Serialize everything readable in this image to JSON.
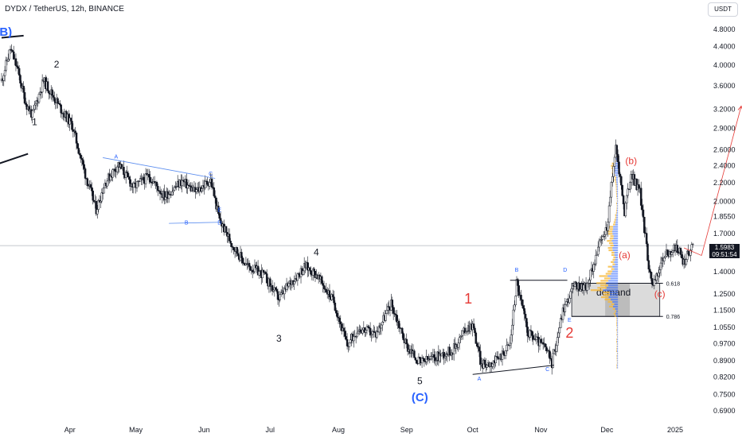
{
  "header": {
    "title": "DYDX / TetherUS, 12h, BINANCE",
    "currency_button": "USDT"
  },
  "price_tag": {
    "price": "1.5983",
    "countdown": "09:51:54"
  },
  "chart_data": {
    "type": "candlestick",
    "symbol": "DYDX / TetherUS",
    "interval": "12h",
    "exchange": "BINANCE",
    "y_scale": "log",
    "ylim": [
      0.66,
      5.1
    ],
    "y_ticks": [
      4.8,
      4.4,
      4.0,
      3.6,
      3.2,
      2.9,
      2.6,
      2.4,
      2.2,
      2.0,
      1.855,
      1.7,
      1.4,
      1.25,
      1.15,
      1.055,
      0.97,
      0.89,
      0.82,
      0.75,
      0.69
    ],
    "y_tick_labels": [
      "4.8000",
      "4.4000",
      "4.0000",
      "3.6000",
      "3.2000",
      "2.9000",
      "2.6000",
      "2.4000",
      "2.2000",
      "2.0000",
      "1.8550",
      "1.7000",
      "1.4000",
      "1.2500",
      "1.1500",
      "1.0550",
      "0.9700",
      "0.8900",
      "0.8200",
      "0.7500",
      "0.6900"
    ],
    "x_domain": [
      "2024-03-01",
      "2025-01-14"
    ],
    "x_ticks": [
      {
        "date": "2024-04-01",
        "label": "Apr"
      },
      {
        "date": "2024-05-01",
        "label": "May"
      },
      {
        "date": "2024-06-01",
        "label": "Jun"
      },
      {
        "date": "2024-07-01",
        "label": "Jul"
      },
      {
        "date": "2024-08-01",
        "label": "Aug"
      },
      {
        "date": "2024-09-01",
        "label": "Sep"
      },
      {
        "date": "2024-10-01",
        "label": "Oct"
      },
      {
        "date": "2024-11-01",
        "label": "Nov"
      },
      {
        "date": "2024-12-01",
        "label": "Dec"
      },
      {
        "date": "2025-01-01",
        "label": "2025"
      }
    ],
    "price_path": [
      [
        "2024-03-01",
        3.7
      ],
      [
        "2024-03-05",
        4.35
      ],
      [
        "2024-03-08",
        3.95
      ],
      [
        "2024-03-12",
        3.3
      ],
      [
        "2024-03-15",
        3.1
      ],
      [
        "2024-03-20",
        3.7
      ],
      [
        "2024-03-24",
        3.45
      ],
      [
        "2024-03-28",
        3.2
      ],
      [
        "2024-04-02",
        2.95
      ],
      [
        "2024-04-08",
        2.3
      ],
      [
        "2024-04-13",
        1.92
      ],
      [
        "2024-04-17",
        2.2
      ],
      [
        "2024-04-23",
        2.42
      ],
      [
        "2024-04-30",
        2.15
      ],
      [
        "2024-05-07",
        2.28
      ],
      [
        "2024-05-14",
        2.05
      ],
      [
        "2024-05-22",
        2.22
      ],
      [
        "2024-05-28",
        2.1
      ],
      [
        "2024-06-04",
        2.23
      ],
      [
        "2024-06-08",
        1.82
      ],
      [
        "2024-06-14",
        1.6
      ],
      [
        "2024-06-20",
        1.45
      ],
      [
        "2024-06-28",
        1.38
      ],
      [
        "2024-07-05",
        1.22
      ],
      [
        "2024-07-10",
        1.32
      ],
      [
        "2024-07-17",
        1.44
      ],
      [
        "2024-07-22",
        1.38
      ],
      [
        "2024-07-30",
        1.2
      ],
      [
        "2024-08-05",
        0.96
      ],
      [
        "2024-08-10",
        1.05
      ],
      [
        "2024-08-18",
        1.02
      ],
      [
        "2024-08-25",
        1.19
      ],
      [
        "2024-09-01",
        0.96
      ],
      [
        "2024-09-07",
        0.88
      ],
      [
        "2024-09-15",
        0.91
      ],
      [
        "2024-09-22",
        0.94
      ],
      [
        "2024-09-28",
        1.05
      ],
      [
        "2024-10-01",
        1.07
      ],
      [
        "2024-10-05",
        0.87
      ],
      [
        "2024-10-12",
        0.89
      ],
      [
        "2024-10-18",
        0.97
      ],
      [
        "2024-10-21",
        1.33
      ],
      [
        "2024-10-26",
        1.03
      ],
      [
        "2024-11-03",
        0.95
      ],
      [
        "2024-11-06",
        0.88
      ],
      [
        "2024-11-11",
        1.15
      ],
      [
        "2024-11-16",
        1.3
      ],
      [
        "2024-11-22",
        1.3
      ],
      [
        "2024-11-27",
        1.58
      ],
      [
        "2024-12-01",
        1.75
      ],
      [
        "2024-12-05",
        2.65
      ],
      [
        "2024-12-09",
        1.9
      ],
      [
        "2024-12-12",
        2.3
      ],
      [
        "2024-12-16",
        2.1
      ],
      [
        "2024-12-20",
        1.45
      ],
      [
        "2024-12-22",
        1.3
      ],
      [
        "2024-12-27",
        1.52
      ],
      [
        "2025-01-02",
        1.58
      ],
      [
        "2025-01-05",
        1.47
      ],
      [
        "2025-01-09",
        1.6
      ]
    ],
    "current_price": 1.5983,
    "horizontal_price_line": 1.5983,
    "demand_zone": {
      "label": "demand",
      "from": "2024-11-15",
      "to": "2024-12-25",
      "upper": 1.32,
      "lower": 1.115
    },
    "fib_levels": [
      {
        "label": "0.618",
        "price": 1.32
      },
      {
        "label": "0.786",
        "price": 1.115
      }
    ],
    "wave_labels": [
      {
        "text": "(B)",
        "date": "2024-03-02",
        "price": 4.65,
        "color": "#2962ff"
      },
      {
        "text": "2",
        "date": "2024-03-26",
        "price": 3.95,
        "color": "#131722"
      },
      {
        "text": "1",
        "date": "2024-03-16",
        "price": 2.95,
        "color": "#131722"
      },
      {
        "text": "4",
        "date": "2024-07-22",
        "price": 1.52,
        "color": "#131722"
      },
      {
        "text": "3",
        "date": "2024-07-05",
        "price": 0.98,
        "color": "#131722"
      },
      {
        "text": "5",
        "date": "2024-09-07",
        "price": 0.79,
        "color": "#131722"
      },
      {
        "text": "(C)",
        "date": "2024-09-07",
        "price": 0.725,
        "color": "#2962ff"
      },
      {
        "text": "1",
        "date": "2024-09-29",
        "price": 1.19,
        "color": "#e53935"
      },
      {
        "text": "2",
        "date": "2024-11-14",
        "price": 1.0,
        "color": "#e53935"
      },
      {
        "text": "(b)",
        "date": "2024-12-12",
        "price": 2.42,
        "color": "#e53935"
      },
      {
        "text": "(a)",
        "date": "2024-12-09",
        "price": 1.5,
        "color": "#e53935"
      },
      {
        "text": "(c)",
        "date": "2024-12-25",
        "price": 1.23,
        "color": "#e53935"
      }
    ],
    "pattern_labels": [
      {
        "text": "A",
        "date": "2024-04-22",
        "price": 2.49
      },
      {
        "text": "B",
        "date": "2024-05-24",
        "price": 1.78
      },
      {
        "text": "C",
        "date": "2024-06-04",
        "price": 2.28
      },
      {
        "text": "D",
        "date": "2024-06-08",
        "price": 1.78
      },
      {
        "text": "E",
        "date": "2024-06-08",
        "price": 1.9
      },
      {
        "text": "A",
        "date": "2024-10-04",
        "price": 0.805
      },
      {
        "text": "B",
        "date": "2024-10-21",
        "price": 1.4
      },
      {
        "text": "C",
        "date": "2024-11-04",
        "price": 0.845
      },
      {
        "text": "D",
        "date": "2024-11-12",
        "price": 1.4
      },
      {
        "text": "E",
        "date": "2024-11-14",
        "price": 1.085
      }
    ],
    "projection": {
      "from": [
        "2025-01-13",
        1.52
      ],
      "to": [
        "2025-01-31",
        3.25
      ],
      "color": "#e53935"
    }
  }
}
